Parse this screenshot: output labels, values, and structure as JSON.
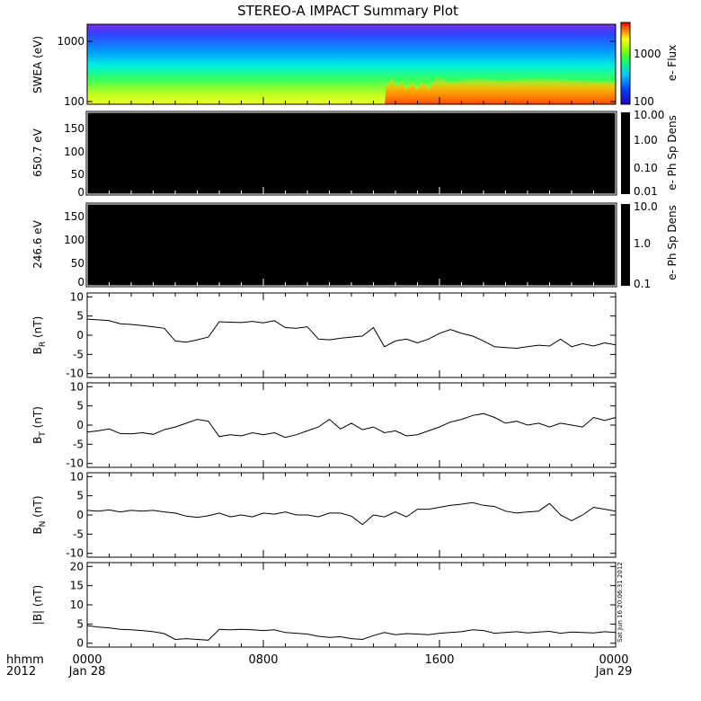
{
  "chart_data": {
    "type": "line",
    "title": "STEREO-A IMPACT Summary Plot",
    "x_range_hours": [
      0,
      24
    ],
    "x_ticks": [
      {
        "hour": 0,
        "label": "0000",
        "sublabel": "Jan 28"
      },
      {
        "hour": 8,
        "label": "0800",
        "sublabel": ""
      },
      {
        "hour": 16,
        "label": "1600",
        "sublabel": ""
      },
      {
        "hour": 24,
        "label": "0000",
        "sublabel": "Jan 29"
      }
    ],
    "x_prefix_label_top": "hhmm",
    "x_prefix_label_bottom": "2012",
    "side_stamp": "Sat Jun 16 20:06:31 2012",
    "spectrogram": {
      "ylabel": "SWEA (eV)",
      "y_ticks": [
        "1000",
        "100"
      ],
      "colorbar_label": "e- Flux",
      "colorbar_ticks": [
        "1000",
        "100"
      ],
      "colors": {
        "top": "#7030e0",
        "high": "#2030ff",
        "mid": "#00e0ff",
        "low": "#40ff40",
        "base": "#e8ff20",
        "hot": "#ff6000"
      }
    },
    "pitch_panels": [
      {
        "ylabel": "650.7 eV",
        "y_ticks": [
          "150",
          "100",
          "50",
          "0"
        ],
        "ylim": [
          0,
          180
        ],
        "colorbar_label": "e- Ph Sp Dens",
        "colorbar_ticks": [
          "10.00",
          "1.00",
          "0.10",
          "0.01"
        ]
      },
      {
        "ylabel": "246.6 eV",
        "y_ticks": [
          "150",
          "100",
          "50",
          "0"
        ],
        "ylim": [
          0,
          180
        ],
        "colorbar_label": "e- Ph Sp Dens",
        "colorbar_ticks": [
          "10.0",
          "1.0",
          "0.1"
        ]
      }
    ],
    "series": [
      {
        "name": "BR",
        "ylim": [
          -11,
          11
        ],
        "y_ticks": [
          "10",
          "5",
          "0",
          "-5",
          "-10"
        ],
        "x": [
          0,
          0.5,
          1,
          1.5,
          2,
          2.5,
          3,
          3.5,
          4,
          4.5,
          5,
          5.5,
          6,
          6.5,
          7,
          7.5,
          8,
          8.5,
          9,
          9.5,
          10,
          10.5,
          11,
          11.5,
          12,
          12.5,
          13,
          13.5,
          14,
          14.5,
          15,
          15.5,
          16,
          16.5,
          17,
          17.5,
          18,
          18.5,
          19,
          19.5,
          20,
          20.5,
          21,
          21.5,
          22,
          22.5,
          23,
          23.5,
          24
        ],
        "y": [
          4.2,
          4.0,
          3.8,
          3.0,
          2.8,
          2.5,
          2.2,
          1.8,
          -1.5,
          -1.8,
          -1.2,
          -0.5,
          3.5,
          3.4,
          3.3,
          3.6,
          3.2,
          3.8,
          2.0,
          1.8,
          2.2,
          -1.0,
          -1.2,
          -0.8,
          -0.5,
          -0.2,
          2.0,
          -3.0,
          -1.5,
          -1.0,
          -2.0,
          -1.0,
          0.5,
          1.5,
          0.5,
          -0.2,
          -1.5,
          -3.0,
          -3.2,
          -3.4,
          -3.0,
          -2.6,
          -2.8,
          -1.0,
          -3.0,
          -2.2,
          -2.8,
          -2.0,
          -2.5
        ]
      },
      {
        "name": "BT",
        "ylim": [
          -11,
          11
        ],
        "y_ticks": [
          "10",
          "5",
          "0",
          "-5",
          "-10"
        ],
        "x": [
          0,
          0.5,
          1,
          1.5,
          2,
          2.5,
          3,
          3.5,
          4,
          4.5,
          5,
          5.5,
          6,
          6.5,
          7,
          7.5,
          8,
          8.5,
          9,
          9.5,
          10,
          10.5,
          11,
          11.5,
          12,
          12.5,
          13,
          13.5,
          14,
          14.5,
          15,
          15.5,
          16,
          16.5,
          17,
          17.5,
          18,
          18.5,
          19,
          19.5,
          20,
          20.5,
          21,
          21.5,
          22,
          22.5,
          23,
          23.5,
          24
        ],
        "y": [
          -1.8,
          -1.5,
          -1.0,
          -2.2,
          -2.3,
          -2.0,
          -2.4,
          -1.2,
          -0.5,
          0.5,
          1.5,
          1.0,
          -3.0,
          -2.5,
          -2.8,
          -2.0,
          -2.5,
          -2.0,
          -3.2,
          -2.5,
          -1.5,
          -0.5,
          1.5,
          -1.0,
          0.5,
          -1.2,
          -0.5,
          -2.0,
          -1.5,
          -2.8,
          -2.5,
          -1.5,
          -0.5,
          0.8,
          1.5,
          2.5,
          3.0,
          2.0,
          0.5,
          1.0,
          0.0,
          0.5,
          -0.5,
          0.5,
          0.0,
          -0.5,
          2.0,
          1.2,
          2.0
        ]
      },
      {
        "name": "BN",
        "ylim": [
          -11,
          11
        ],
        "y_ticks": [
          "10",
          "5",
          "0",
          "-5",
          "-10"
        ],
        "x": [
          0,
          0.5,
          1,
          1.5,
          2,
          2.5,
          3,
          3.5,
          4,
          4.5,
          5,
          5.5,
          6,
          6.5,
          7,
          7.5,
          8,
          8.5,
          9,
          9.5,
          10,
          10.5,
          11,
          11.5,
          12,
          12.5,
          13,
          13.5,
          14,
          14.5,
          15,
          15.5,
          16,
          16.5,
          17,
          17.5,
          18,
          18.5,
          19,
          19.5,
          20,
          20.5,
          21,
          21.5,
          22,
          22.5,
          23,
          23.5,
          24
        ],
        "y": [
          1.2,
          1.0,
          1.3,
          0.8,
          1.2,
          1.0,
          1.2,
          0.8,
          0.5,
          -0.3,
          -0.6,
          -0.2,
          0.5,
          -0.5,
          0.0,
          -0.5,
          0.5,
          0.2,
          0.8,
          0.0,
          0.0,
          -0.5,
          0.5,
          0.5,
          -0.3,
          -2.5,
          0.0,
          -0.5,
          0.8,
          -0.5,
          1.5,
          1.5,
          2.0,
          2.5,
          2.8,
          3.2,
          2.5,
          2.2,
          1.0,
          0.5,
          0.8,
          1.0,
          3.0,
          0.0,
          -1.5,
          0.0,
          2.0,
          1.5,
          1.0
        ]
      },
      {
        "name": "|B|",
        "ylim": [
          -1,
          21
        ],
        "y_ticks": [
          "20",
          "15",
          "10",
          "5",
          "0"
        ],
        "x": [
          0,
          0.5,
          1,
          1.5,
          2,
          2.5,
          3,
          3.5,
          4,
          4.5,
          5,
          5.5,
          6,
          6.5,
          7,
          7.5,
          8,
          8.5,
          9,
          9.5,
          10,
          10.5,
          11,
          11.5,
          12,
          12.5,
          13,
          13.5,
          14,
          14.5,
          15,
          15.5,
          16,
          16.5,
          17,
          17.5,
          18,
          18.5,
          19,
          19.5,
          20,
          20.5,
          21,
          21.5,
          22,
          22.5,
          23,
          23.5,
          24
        ],
        "y": [
          4.6,
          4.2,
          4.0,
          3.6,
          3.5,
          3.3,
          3.0,
          2.5,
          1.0,
          1.2,
          1.0,
          0.8,
          3.6,
          3.5,
          3.6,
          3.5,
          3.3,
          3.5,
          2.8,
          2.6,
          2.4,
          1.8,
          1.5,
          1.7,
          1.2,
          1.0,
          2.0,
          2.8,
          2.2,
          2.5,
          2.4,
          2.2,
          2.6,
          2.8,
          3.0,
          3.5,
          3.3,
          2.6,
          2.8,
          3.0,
          2.7,
          2.9,
          3.1,
          2.6,
          2.9,
          2.8,
          2.7,
          3.0,
          2.8
        ]
      }
    ],
    "panel_labels": [
      "B_R (nT)",
      "B_T (nT)",
      "B_N (nT)",
      "|B| (nT)"
    ]
  }
}
